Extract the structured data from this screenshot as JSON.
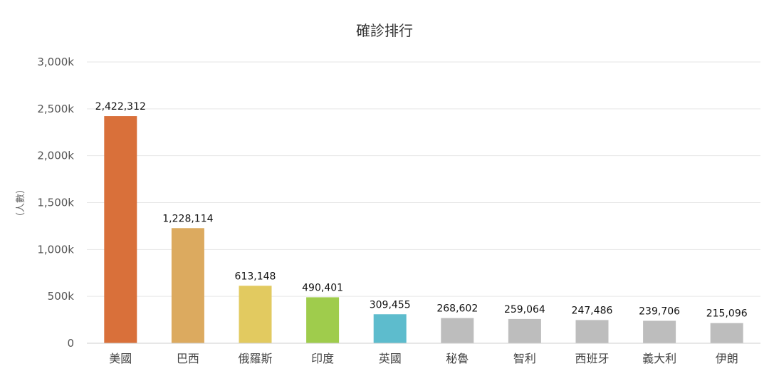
{
  "chart_data": {
    "type": "bar",
    "title": "確診排行",
    "ylabel": "（人數）",
    "xlabel": "",
    "ylim": [
      0,
      3000000
    ],
    "yticks": [
      {
        "value": 0,
        "label": "0"
      },
      {
        "value": 500000,
        "label": "500k"
      },
      {
        "value": 1000000,
        "label": "1,000k"
      },
      {
        "value": 1500000,
        "label": "1,500k"
      },
      {
        "value": 2000000,
        "label": "2,000k"
      },
      {
        "value": 2500000,
        "label": "2,500k"
      },
      {
        "value": 3000000,
        "label": "3,000k"
      }
    ],
    "grid": true,
    "legend": "none",
    "categories": [
      "美國",
      "巴西",
      "俄羅斯",
      "印度",
      "英國",
      "秘魯",
      "智利",
      "西班牙",
      "義大利",
      "伊朗"
    ],
    "values": [
      2422312,
      1228114,
      613148,
      490401,
      309455,
      268602,
      259064,
      247486,
      239706,
      215096
    ],
    "value_labels": [
      "2,422,312",
      "1,228,114",
      "613,148",
      "490,401",
      "309,455",
      "268,602",
      "259,064",
      "247,486",
      "239,706",
      "215,096"
    ],
    "colors": [
      "#d9703a",
      "#dcaa5f",
      "#e2ca60",
      "#9fcc4c",
      "#5dbccd",
      "#bdbdbd",
      "#bdbdbd",
      "#bdbdbd",
      "#bdbdbd",
      "#bdbdbd"
    ]
  }
}
